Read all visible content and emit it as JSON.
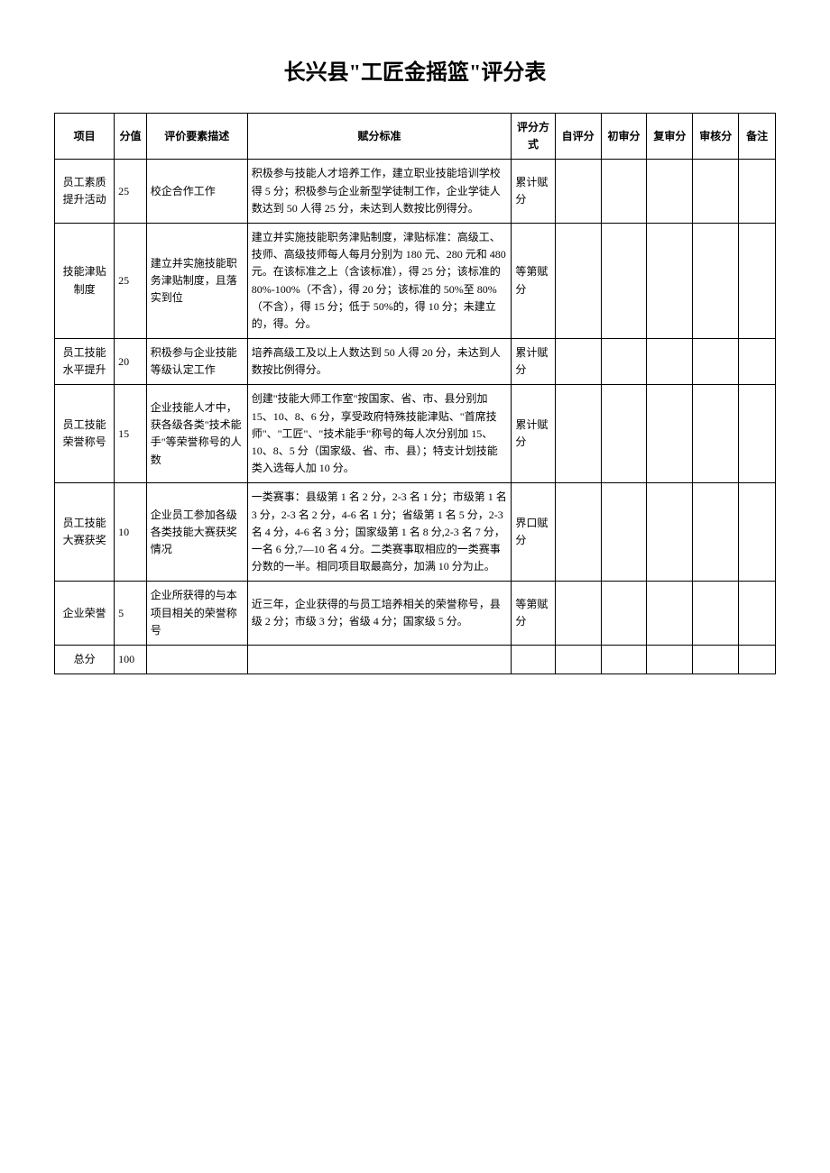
{
  "title": "长兴县\"工匠金摇篮\"评分表",
  "headers": {
    "project": "项目",
    "score": "分值",
    "desc": "评价要素描述",
    "standard": "赋分标准",
    "method": "评分方式",
    "self": "自评分",
    "first": "初审分",
    "review": "复审分",
    "audit": "审核分",
    "remark": "备注"
  },
  "rows": [
    {
      "project": "员工素质提升活动",
      "score": "25",
      "desc": "校企合作工作",
      "standard": "积极参与技能人才培养工作，建立职业技能培训学校得 5 分；积极参与企业新型学徒制工作，企业学徒人数达到 50 人得 25 分，未达到人数按比例得分。",
      "method": "累计赋分"
    },
    {
      "project": "技能津贴制度",
      "score": "25",
      "desc": "建立并实施技能职务津贴制度，且落实到位",
      "standard": "建立并实施技能职务津贴制度，津贴标准：高级工、技师、高级技师每人每月分别为 180 元、280 元和 480 元。在该标准之上（含该标准），得 25 分；该标准的 80%-100%（不含），得 20 分；该标准的 50%至 80%（不含），得 15 分；低于 50%的，得 10 分；未建立的，得。分。",
      "method": "等第赋分"
    },
    {
      "project": "员工技能水平提升",
      "score": "20",
      "desc": "积极参与企业技能等级认定工作",
      "standard": "培养高级工及以上人数达到 50 人得 20 分，未达到人数按比例得分。",
      "method": "累计赋分"
    },
    {
      "project": "员工技能荣誉称号",
      "score": "15",
      "desc": "企业技能人才中，获各级各类\"技术能手\"等荣誉称号的人数",
      "standard": "创建\"技能大师工作室\"按国家、省、市、县分别加 15、10、8、6 分，享受政府特殊技能津贴、\"首席技师\"、\"工匠\"、\"技术能手\"称号的每人次分别加 15、10、8、5 分（国家级、省、市、县）；特支计划技能类入选每人加 10 分。",
      "method": "累计赋分"
    },
    {
      "project": "员工技能大赛获奖",
      "score": "10",
      "desc": "企业员工参加各级各类技能大赛获奖情况",
      "standard": "一类赛事：县级第 1 名 2 分，2-3 名 1 分；市级第 1 名 3 分，2-3 名 2 分，4-6 名 1 分；省级第 1 名 5 分，2-3 名 4 分，4-6 名 3 分；国家级第 1 名 8 分,2-3 名 7 分，一名 6 分,7—10 名 4 分。二类赛事取相应的一类赛事分数的一半。相同项目取最高分，加满 10 分为止。",
      "method": "界口赋分"
    },
    {
      "project": "企业荣誉",
      "score": "5",
      "desc": "企业所获得的与本项目相关的荣誉称号",
      "standard": "近三年，企业获得的与员工培养相关的荣誉称号，县级 2 分；市级 3 分；省级 4 分；国家级 5 分。",
      "method": "等第赋分"
    }
  ],
  "total": {
    "label": "总分",
    "value": "100"
  }
}
